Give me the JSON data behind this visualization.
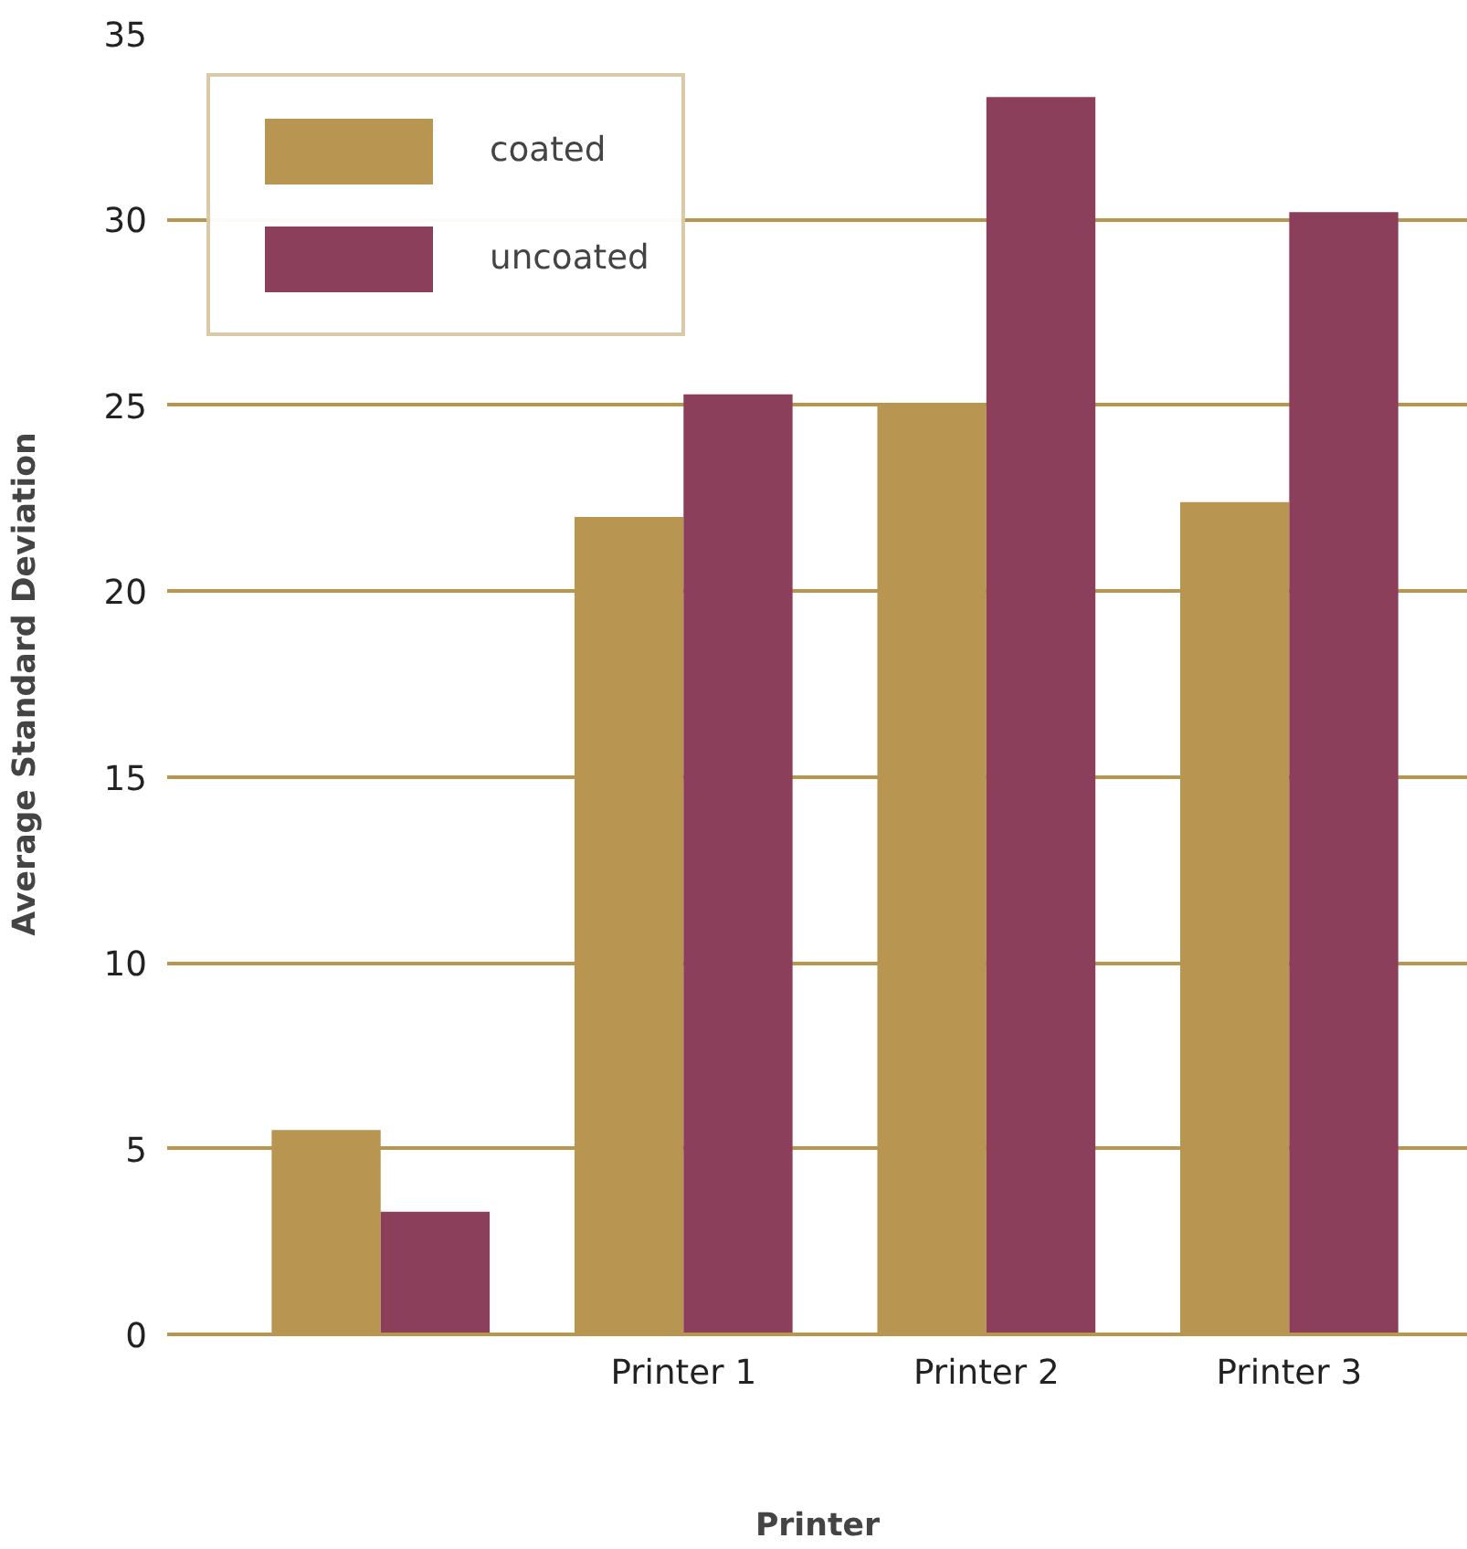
{
  "chart_data": {
    "type": "bar",
    "xlabel": "Printer",
    "ylabel": "Average Standard Deviation",
    "categories": [
      null,
      "Printer 1",
      "Printer 2",
      "Printer 3"
    ],
    "series": [
      {
        "name": "coated",
        "color": "#b89550",
        "values": [
          5.5,
          22.0,
          25.0,
          22.4
        ]
      },
      {
        "name": "uncoated",
        "color": "#8c3f5a",
        "values": [
          3.3,
          25.3,
          33.3,
          30.2
        ]
      }
    ],
    "ylim": [
      0,
      35
    ],
    "yticks": [
      0,
      5,
      10,
      15,
      20,
      25,
      30,
      35
    ],
    "grid": "y",
    "legend": "top left"
  }
}
